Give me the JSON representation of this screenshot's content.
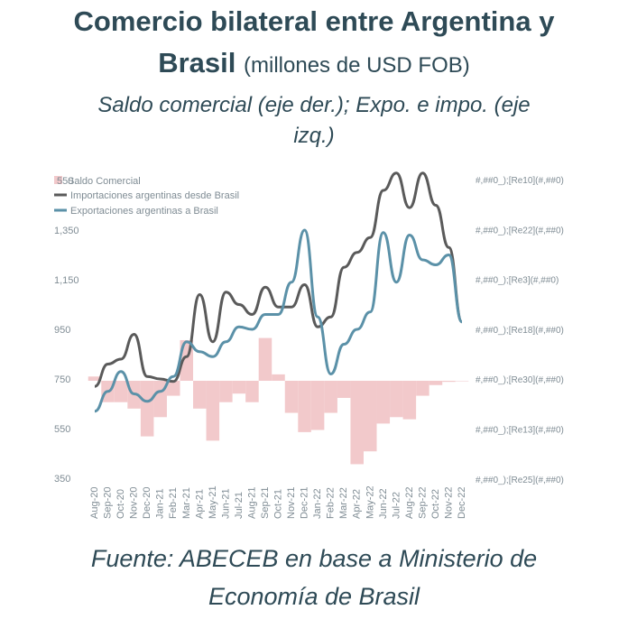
{
  "header": {
    "title_line1": "Comercio bilateral entre Argentina y",
    "title_line2_bold": "Brasil",
    "title_line2_normal": "(millones de USD FOB)",
    "subtitle_line1": "Saldo comercial (eje der.); Expo. e impo. (eje",
    "subtitle_line2": "izq.)"
  },
  "footer": {
    "source_line1": "Fuente: ABECEB en base a Ministerio de",
    "source_line2": "Economía de Brasil"
  },
  "chart_data": {
    "type": "line",
    "x": [
      "Aug-20",
      "Sep-20",
      "Oct-20",
      "Nov-20",
      "Dec-20",
      "Jan-21",
      "Feb-21",
      "Mar-21",
      "Apr-21",
      "May-21",
      "Jun-21",
      "Jul-21",
      "Aug-21",
      "Sep-21",
      "Oct-21",
      "Nov-21",
      "Dec-21",
      "Jan-22",
      "Feb-22",
      "Mar-22",
      "Apr-22",
      "May-22",
      "Jun-22",
      "Jul-22",
      "Aug-22",
      "Sep-22",
      "Oct-22",
      "Nov-22",
      "Dec-22"
    ],
    "x_tick_labels": [
      "Aug-20",
      "Sep-20",
      "Oct-20",
      "Nov-20",
      "Dec-20",
      "Jan-21",
      "Feb-21",
      "Mar-21",
      "Apr-21",
      "May-21",
      "Jun-21",
      "Jul-21",
      "Aug-21",
      "Sep-21",
      "Oct-21",
      "Nov-21",
      "Dec-21",
      "Jan-22",
      "Feb-22",
      "Mar-22",
      "Apr-22",
      "May-22",
      "Jun-22",
      "Jul-22",
      "Aug-22",
      "Sep-22",
      "Oct-22",
      "Nov-22",
      "Dec-22"
    ],
    "series": [
      {
        "name": "Saldo Comercial",
        "kind": "bar",
        "color": "#f2c9cb",
        "values": [
          20,
          -100,
          -100,
          -130,
          -260,
          -170,
          -70,
          190,
          -130,
          -280,
          -100,
          -60,
          -100,
          200,
          30,
          -150,
          -240,
          -230,
          -150,
          -80,
          -390,
          -330,
          -200,
          -170,
          -180,
          -70,
          -20,
          -5,
          0
        ]
      },
      {
        "name": "Importaciones argentinas desde Brasil",
        "kind": "line",
        "color": "#5a5a5a",
        "values": [
          720,
          810,
          830,
          930,
          760,
          750,
          740,
          840,
          1090,
          900,
          1100,
          1050,
          1010,
          1120,
          1040,
          1040,
          1130,
          960,
          1000,
          1200,
          1260,
          1320,
          1510,
          1580,
          1440,
          1580,
          1450,
          1280,
          980
        ]
      },
      {
        "name": "Exportaciones argentinas a Brasil",
        "kind": "line",
        "color": "#5b91a8",
        "values": [
          620,
          700,
          780,
          690,
          660,
          700,
          760,
          900,
          860,
          840,
          900,
          960,
          950,
          1010,
          1010,
          1140,
          1350,
          1000,
          770,
          890,
          950,
          1020,
          1340,
          1140,
          1330,
          1230,
          1210,
          1250,
          980
        ]
      }
    ],
    "left_axis": {
      "ticks": [
        "1,350",
        "1,150",
        "950",
        "750",
        "550",
        "350"
      ],
      "ylim": [
        350,
        1580
      ]
    },
    "right_axis": {
      "ticks": [
        "#,##0_);[Re10](#,##0)",
        "#,##0_);[Re22](#,##0)",
        "#,##0_);[Re3](#,##0)",
        "#,##0_);[Re18](#,##0)",
        "#,##0_);[Re30](#,##0)",
        "#,##0_);[Re13](#,##0)",
        "#,##0_);[Re25](#,##0)"
      ]
    },
    "legend_placement": "top-left",
    "legend_stray_text": "550",
    "grid": false
  }
}
